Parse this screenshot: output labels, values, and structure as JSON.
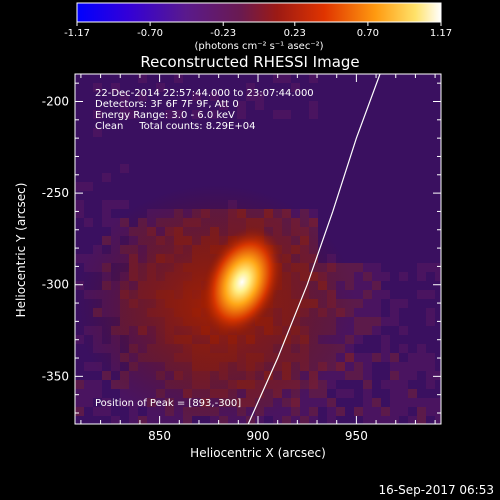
{
  "colorbar": {
    "min": -1.17,
    "max": 1.17,
    "tick_labels": [
      "-1.17",
      "-0.70",
      "-0.23",
      "0.23",
      "0.70",
      "1.17"
    ],
    "tick_values": [
      -1.17,
      -0.7,
      -0.23,
      0.23,
      0.7,
      1.17
    ],
    "unit_label": "(photons cm⁻² s⁻¹ asec⁻²)",
    "colors": [
      "#0000ff",
      "#3a00c8",
      "#5a1e86",
      "#7a2034",
      "#c41400",
      "#ff6a00",
      "#ffd23a",
      "#ffffff"
    ]
  },
  "title": "Reconstructed RHESSI Image",
  "annotations": {
    "time_range": "22-Dec-2014 22:57:44.000 to 23:07:44.000",
    "detectors": "Detectors: 3F 6F 7F 9F, Att 0",
    "energy": "Energy Range: 3.0 - 6.0 keV",
    "clean": "Clean     Total counts: 8.29E+04",
    "peak": "Position of Peak = [893,-300]"
  },
  "axes": {
    "xlabel": "Heliocentric X (arcsec)",
    "ylabel": "Heliocentric Y (arcsec)",
    "xlim": [
      807,
      993
    ],
    "ylim": [
      -376,
      -185
    ],
    "xticks": [
      850,
      900,
      950
    ],
    "xtick_labels": [
      "850",
      "900",
      "950"
    ],
    "yticks": [
      -200,
      -250,
      -300,
      -350
    ],
    "ytick_labels": [
      "-200",
      "-250",
      "-300",
      "-350"
    ]
  },
  "image": {
    "peak_position": [
      893,
      -300
    ],
    "limb_curve": [
      [
        895,
        -376
      ],
      [
        910,
        -340
      ],
      [
        925,
        -300
      ],
      [
        938,
        -260
      ],
      [
        950,
        -220
      ],
      [
        962,
        -185
      ]
    ]
  },
  "footer_date": "16-Sep-2017 06:53"
}
